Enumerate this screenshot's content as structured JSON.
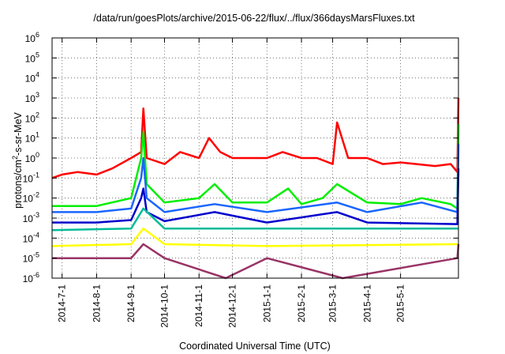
{
  "chart_data": {
    "type": "line",
    "title": "/data/run/goesPlots/archive/2015-06-22/flux/../flux/366daysMarsFluxes.txt",
    "xlabel": "Coordinated Universal Time (UTC)",
    "ylabel_prefix": "protons/cm",
    "ylabel_exponent": "2",
    "ylabel_suffix": "-s-sr-MeV",
    "y_scale": "log",
    "ylim": [
      1e-06,
      1000000
    ],
    "xlim": [
      "2014-06-22",
      "2015-06-22"
    ],
    "grid": "dotted",
    "y_ticks": [
      {
        "base": "10",
        "exp": "-6",
        "value": 1e-06
      },
      {
        "base": "10",
        "exp": "-5",
        "value": 1e-05
      },
      {
        "base": "10",
        "exp": "-4",
        "value": 0.0001
      },
      {
        "base": "10",
        "exp": "-3",
        "value": 0.001
      },
      {
        "base": "10",
        "exp": "-2",
        "value": 0.01
      },
      {
        "base": "10",
        "exp": "-1",
        "value": 0.1
      },
      {
        "base": "10",
        "exp": "0",
        "value": 1
      },
      {
        "base": "10",
        "exp": "1",
        "value": 10
      },
      {
        "base": "10",
        "exp": "2",
        "value": 100
      },
      {
        "base": "10",
        "exp": "3",
        "value": 1000
      },
      {
        "base": "10",
        "exp": "4",
        "value": 10000
      },
      {
        "base": "10",
        "exp": "5",
        "value": 100000
      },
      {
        "base": "10",
        "exp": "6",
        "value": 1000000
      }
    ],
    "x_ticks": [
      {
        "label": "2014-7-1",
        "date": "2014-07-01"
      },
      {
        "label": "2014-8-1",
        "date": "2014-08-01"
      },
      {
        "label": "2014-9-1",
        "date": "2014-09-01"
      },
      {
        "label": "2014-10-1",
        "date": "2014-10-01"
      },
      {
        "label": "2014-11-1",
        "date": "2014-11-01"
      },
      {
        "label": "2014-12-1",
        "date": "2014-12-01"
      },
      {
        "label": "2015-1-1",
        "date": "2015-01-01"
      },
      {
        "label": "2015-2-1",
        "date": "2015-02-01"
      },
      {
        "label": "2015-3-1",
        "date": "2015-03-01"
      },
      {
        "label": "2015-4-1",
        "date": "2015-04-01"
      },
      {
        "label": "2015-5-1",
        "date": "2015-05-01"
      }
    ],
    "series": [
      {
        "color": "#ff0000",
        "x": [
          "2014-06-22",
          "2014-07-01",
          "2014-07-15",
          "2014-08-01",
          "2014-08-15",
          "2014-09-01",
          "2014-09-10",
          "2014-09-12",
          "2014-09-15",
          "2014-10-01",
          "2014-10-15",
          "2014-11-01",
          "2014-11-10",
          "2014-11-20",
          "2014-12-01",
          "2014-12-15",
          "2015-01-01",
          "2015-01-15",
          "2015-02-01",
          "2015-02-15",
          "2015-03-01",
          "2015-03-05",
          "2015-03-15",
          "2015-04-01",
          "2015-04-15",
          "2015-05-01",
          "2015-05-15",
          "2015-06-01",
          "2015-06-15",
          "2015-06-21",
          "2015-06-22"
        ],
        "values": [
          0.1,
          0.15,
          0.2,
          0.15,
          0.3,
          1.0,
          2.0,
          300,
          1.0,
          0.5,
          2.0,
          1.0,
          10,
          2.0,
          1.0,
          1.0,
          1.0,
          2.0,
          1.0,
          1.0,
          0.5,
          60,
          1.0,
          1.0,
          0.5,
          0.6,
          0.5,
          0.4,
          0.5,
          0.2,
          1000
        ]
      },
      {
        "color": "#00ee00",
        "x": [
          "2014-06-22",
          "2014-08-01",
          "2014-09-01",
          "2014-09-10",
          "2014-09-12",
          "2014-09-15",
          "2014-10-01",
          "2014-11-01",
          "2014-11-15",
          "2014-12-01",
          "2015-01-01",
          "2015-01-20",
          "2015-02-01",
          "2015-02-20",
          "2015-03-05",
          "2015-04-01",
          "2015-05-01",
          "2015-05-20",
          "2015-06-15",
          "2015-06-21",
          "2015-06-22"
        ],
        "values": [
          0.004,
          0.004,
          0.01,
          1.0,
          20,
          0.05,
          0.006,
          0.01,
          0.05,
          0.006,
          0.006,
          0.03,
          0.005,
          0.01,
          0.05,
          0.006,
          0.005,
          0.01,
          0.005,
          0.003,
          50
        ]
      },
      {
        "color": "#ffffff",
        "x": [
          "2014-06-22",
          "2014-09-01",
          "2014-09-12",
          "2014-10-01",
          "2015-01-01",
          "2015-06-22"
        ],
        "values": [
          0.002,
          0.003,
          0.01,
          0.002,
          0.002,
          0.002
        ]
      },
      {
        "color": "#1a66ff",
        "x": [
          "2014-06-22",
          "2014-08-01",
          "2014-09-01",
          "2014-09-10",
          "2014-09-12",
          "2014-09-15",
          "2014-10-01",
          "2014-11-15",
          "2015-01-01",
          "2015-03-05",
          "2015-04-01",
          "2015-05-20",
          "2015-06-21",
          "2015-06-22"
        ],
        "values": [
          0.002,
          0.002,
          0.003,
          0.1,
          1.0,
          0.01,
          0.002,
          0.005,
          0.002,
          0.006,
          0.002,
          0.006,
          0.002,
          5
        ]
      },
      {
        "color": "#0000cc",
        "x": [
          "2014-06-22",
          "2014-08-01",
          "2014-09-01",
          "2014-09-10",
          "2014-09-12",
          "2014-09-15",
          "2014-10-01",
          "2014-11-15",
          "2015-01-01",
          "2015-03-05",
          "2015-04-01",
          "2015-06-21",
          "2015-06-22"
        ],
        "values": [
          0.0006,
          0.0006,
          0.0008,
          0.01,
          0.03,
          0.002,
          0.0007,
          0.002,
          0.0006,
          0.002,
          0.0006,
          0.0005,
          0.3
        ]
      },
      {
        "color": "#00bb99",
        "x": [
          "2014-06-22",
          "2014-09-01",
          "2014-09-12",
          "2014-10-01",
          "2015-01-01",
          "2015-06-22"
        ],
        "values": [
          0.00025,
          0.0003,
          0.003,
          0.0003,
          0.0003,
          0.0003
        ]
      },
      {
        "color": "#ffff00",
        "x": [
          "2014-06-22",
          "2014-09-01",
          "2014-09-12",
          "2014-10-01",
          "2015-01-01",
          "2015-06-22"
        ],
        "values": [
          4e-05,
          5e-05,
          0.0003,
          5e-05,
          4e-05,
          5e-05
        ]
      },
      {
        "color": "#993366",
        "x": [
          "2014-06-22",
          "2014-09-01",
          "2014-09-12",
          "2014-10-01",
          "2014-11-25",
          "2015-01-01",
          "2015-03-10",
          "2015-06-21",
          "2015-06-22"
        ],
        "values": [
          1e-05,
          1e-05,
          5e-05,
          1e-05,
          1e-06,
          1e-05,
          1e-06,
          1e-05,
          5e-05
        ]
      }
    ]
  }
}
